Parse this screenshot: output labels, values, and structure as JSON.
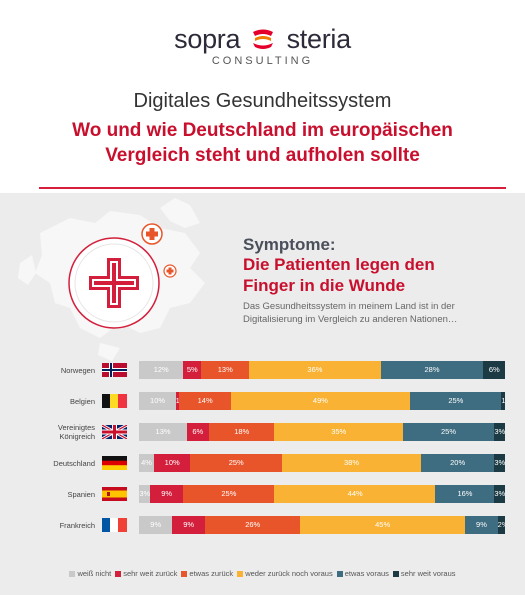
{
  "logo": {
    "left": "sopra",
    "right": "steria",
    "sub": "CONSULTING"
  },
  "header": {
    "title": "Digitales Gesundheitssystem",
    "subtitle_line1": "Wo und wie Deutschland im europäischen",
    "subtitle_line2": "Vergleich steht und aufholen sollte"
  },
  "section": {
    "title": "Symptome:",
    "subtitle_line1": "Die Patienten legen den",
    "subtitle_line2": "Finger in die Wunde",
    "description_line1": "Das Gesundheitssystem in meinem Land ist in der",
    "description_line2": "Digitalisierung im Vergleich zu anderen Nationen…"
  },
  "colors": {
    "accent": "#c8102e",
    "weiss_nicht": "#c9c9c9",
    "sehr_weit_zurueck": "#d31f3c",
    "etwas_zurueck": "#e9552b",
    "weder_noch": "#f9b233",
    "etwas_voraus": "#3e6c80",
    "sehr_weit_voraus": "#1b3a44"
  },
  "chart_data": {
    "type": "bar",
    "orientation": "horizontal-stacked-100",
    "categories": [
      "Norwegen",
      "Belgien",
      "Vereinigtes Königreich",
      "Deutschland",
      "Spanien",
      "Frankreich"
    ],
    "category_lines": [
      [
        "Norwegen"
      ],
      [
        "Belgien"
      ],
      [
        "Vereinigtes",
        "Königreich"
      ],
      [
        "Deutschland"
      ],
      [
        "Spanien"
      ],
      [
        "Frankreich"
      ]
    ],
    "flags": [
      "norway",
      "belgium",
      "uk",
      "germany",
      "spain",
      "france"
    ],
    "series": [
      {
        "name": "weiß nicht",
        "color": "#c9c9c9",
        "values": [
          12,
          10,
          13,
          4,
          3,
          9
        ]
      },
      {
        "name": "sehr weit zurück",
        "color": "#d31f3c",
        "values": [
          5,
          1,
          6,
          10,
          9,
          9
        ]
      },
      {
        "name": "etwas zurück",
        "color": "#e9552b",
        "values": [
          13,
          14,
          18,
          25,
          25,
          26
        ]
      },
      {
        "name": "weder zurück noch voraus",
        "color": "#f9b233",
        "values": [
          36,
          49,
          35,
          38,
          44,
          45
        ]
      },
      {
        "name": "etwas voraus",
        "color": "#3e6c80",
        "values": [
          28,
          25,
          25,
          20,
          16,
          9
        ]
      },
      {
        "name": "sehr weit voraus",
        "color": "#1b3a44",
        "values": [
          6,
          1,
          3,
          3,
          3,
          2
        ]
      }
    ],
    "value_suffix": "%",
    "legend_position": "bottom"
  }
}
